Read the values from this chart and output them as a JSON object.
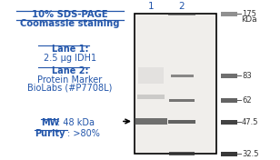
{
  "title_line1": "10% SDS-PAGE",
  "title_line2": "Coomassie staining",
  "lane1_label": "Lane 1",
  "lane1_text": "2.5 μg IDH1",
  "lane2_label": "Lane 2",
  "lane2_text1": "Protein Marker",
  "lane2_text2": "BioLabs (#P7708L)",
  "mw_label": "MW",
  "mw_value": ": 48 kDa",
  "purity_label": "Purity",
  "purity_value": ": >80%",
  "lane_numbers": [
    "1",
    "2"
  ],
  "kda_label": "kDa",
  "mw_markers": [
    175,
    83,
    62,
    47.5,
    32.5
  ],
  "text_color": "#2255aa",
  "bg_color": "#ffffff",
  "gel_bg": "#f0eeeb",
  "gel_box_color": "#000000",
  "marker_band_color": "#333333",
  "sample_band_color": "#555555",
  "arrow_color": "#000000",
  "ref_band_color": "#222222"
}
